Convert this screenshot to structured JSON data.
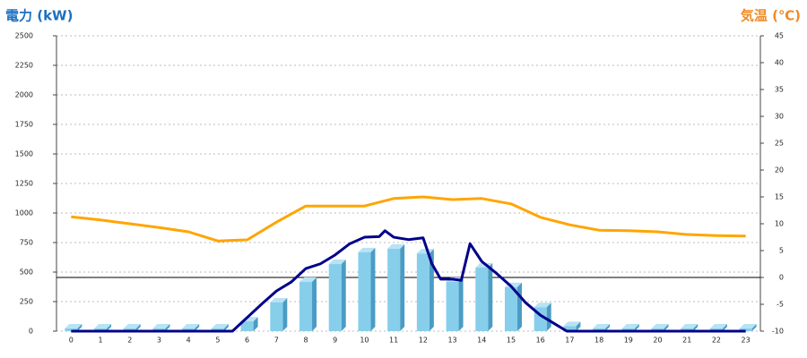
{
  "chart_data": {
    "type": "bar",
    "ylabel": "電力 (kW)",
    "y2label": "気温 (℃)",
    "ylabel_color": "#1e6fc0",
    "y2label_color": "#f08a24",
    "categories": [
      "0",
      "1",
      "2",
      "3",
      "4",
      "5",
      "6",
      "7",
      "8",
      "9",
      "10",
      "11",
      "12",
      "13",
      "14",
      "15",
      "16",
      "17",
      "18",
      "19",
      "20",
      "21",
      "22",
      "23"
    ],
    "ylim": [
      0,
      2500
    ],
    "yticks": [
      0,
      250,
      500,
      750,
      1000,
      1250,
      1500,
      1750,
      2000,
      2250,
      2500
    ],
    "y2lim": [
      -10,
      45
    ],
    "y2ticks": [
      -10,
      -5,
      0,
      5,
      10,
      15,
      20,
      25,
      30,
      35,
      40,
      45
    ],
    "y2_reference": 0,
    "grid": true,
    "series": [
      {
        "type": "bar",
        "color": "#87ceeb",
        "values": [
          0,
          0,
          0,
          0,
          0,
          0,
          60,
          220,
          395,
          545,
          645,
          675,
          635,
          395,
          515,
          350,
          180,
          20,
          0,
          0,
          0,
          0,
          0,
          0
        ]
      },
      {
        "type": "line",
        "axis": "y2",
        "color": "#ffa500",
        "values": [
          11.3,
          10.7,
          10,
          9.3,
          8.5,
          6.8,
          7,
          10.3,
          13.3,
          13.3,
          13.3,
          14.7,
          15,
          14.5,
          14.7,
          13.7,
          11.2,
          9.8,
          8.8,
          8.7,
          8.5,
          8,
          7.8,
          7.7
        ]
      },
      {
        "type": "line",
        "color": "#00008b",
        "x": [
          0,
          5.5,
          6,
          6.5,
          7,
          7.5,
          8,
          8.5,
          9,
          9.5,
          10,
          10.5,
          10.7,
          11,
          11.5,
          12,
          12.3,
          12.6,
          13,
          13.3,
          13.6,
          14,
          14.5,
          15,
          15.5,
          16,
          16.5,
          16.9,
          23
        ],
        "values": [
          0,
          0,
          115,
          230,
          340,
          415,
          530,
          570,
          645,
          740,
          795,
          800,
          850,
          795,
          775,
          790,
          570,
          440,
          440,
          430,
          740,
          590,
          490,
          380,
          240,
          135,
          60,
          0,
          0
        ]
      }
    ]
  }
}
